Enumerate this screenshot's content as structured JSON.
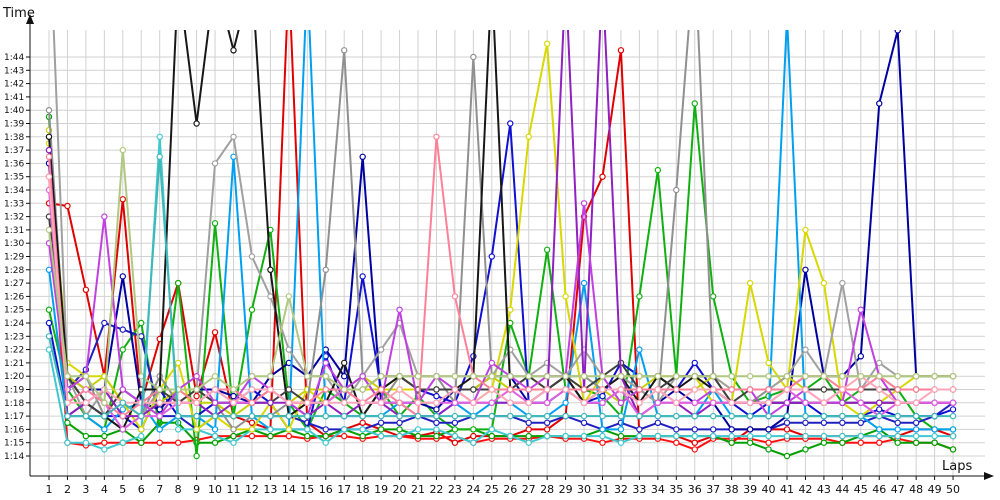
{
  "chart_data": {
    "type": "line",
    "ylabel": "Time",
    "xlabel": "Laps",
    "x": [
      1,
      2,
      3,
      4,
      5,
      6,
      7,
      8,
      9,
      10,
      11,
      12,
      13,
      14,
      15,
      16,
      17,
      18,
      19,
      20,
      21,
      22,
      23,
      24,
      25,
      26,
      27,
      28,
      29,
      30,
      31,
      32,
      33,
      34,
      35,
      36,
      37,
      38,
      39,
      40,
      41,
      42,
      43,
      44,
      45,
      46,
      47,
      48,
      49,
      50
    ],
    "y_ticks": [
      "1:14",
      "1:15",
      "1:16",
      "1:17",
      "1:18",
      "1:19",
      "1:20",
      "1:21",
      "1:22",
      "1:23",
      "1:24",
      "1:25",
      "1:26",
      "1:27",
      "1:28",
      "1:29",
      "1:30",
      "1:31",
      "1:32",
      "1:33",
      "1:34",
      "1:35",
      "1:36",
      "1:37",
      "1:38",
      "1:39",
      "1:40",
      "1:41",
      "1:42",
      "1:43",
      "1:44"
    ],
    "ylim_seconds": [
      73,
      106
    ],
    "grid": true,
    "series": [
      {
        "color": "#e00000",
        "values": [
          93,
          92.8,
          86.5,
          80,
          93.3,
          78,
          82.8,
          87,
          78.5,
          83.3,
          77,
          76.5,
          76,
          110,
          76.5,
          75.5,
          76,
          76.5,
          76,
          75.5,
          75.5,
          75.8,
          75,
          75.5,
          75.5,
          75.5,
          76,
          76,
          77,
          92,
          95,
          104.5,
          75.5,
          75.5,
          75.5,
          75,
          75.5,
          75,
          76,
          76,
          76,
          75.5,
          75.5,
          75.5,
          75.5,
          75.5,
          75.5,
          76,
          76,
          75.5
        ]
      },
      {
        "color": "#ff1010",
        "values": [
          95,
          75,
          74.8,
          75,
          75,
          75,
          75,
          75,
          75.2,
          75.5,
          75.5,
          75.5,
          75.5,
          75.5,
          75.3,
          75.5,
          75.5,
          75.3,
          75.5,
          75.5,
          75.3,
          75.3,
          75.5,
          75,
          75.3,
          75.3,
          75.3,
          75.5,
          75.3,
          75.3,
          75,
          75.3,
          75.3,
          75.3,
          75,
          74.5,
          75.3,
          75.3,
          75.3,
          75,
          75.3,
          75.3,
          75.3,
          75,
          75,
          75,
          75.3,
          75,
          75,
          74.5
        ]
      },
      {
        "color": "#00a000",
        "values": [
          99.5,
          76.5,
          75.5,
          75.5,
          76,
          75,
          76.5,
          76.5,
          75,
          75,
          75.5,
          76,
          75.5,
          76,
          75.5,
          75.5,
          76,
          75.5,
          76,
          76,
          75.5,
          75.5,
          76,
          76,
          75.5,
          75.5,
          75.5,
          75.5,
          75.5,
          75.5,
          76,
          75.5,
          75.5,
          75.5,
          75.5,
          75.5,
          75.5,
          75,
          75,
          74.5,
          74,
          74.5,
          75,
          75,
          75.5,
          76,
          75,
          75,
          75,
          74.5
        ]
      },
      {
        "color": "#10b010",
        "values": [
          85,
          79,
          77,
          76,
          82,
          84,
          76,
          87,
          74,
          91.5,
          77,
          85,
          91,
          78,
          76,
          79,
          78,
          77,
          79,
          77,
          78.5,
          77,
          76,
          76,
          76,
          84,
          80,
          89.5,
          79,
          79,
          78.5,
          77,
          86,
          95.5,
          80,
          100.5,
          86,
          80,
          78,
          78.5,
          79,
          79,
          80,
          78,
          79,
          79,
          79,
          77,
          76,
          76
        ]
      },
      {
        "color": "#2020c0",
        "values": [
          97,
          79,
          80.5,
          84,
          83.5,
          83,
          77,
          77,
          76,
          77,
          77,
          77,
          77,
          77,
          76.5,
          76,
          76,
          76,
          76.5,
          76.5,
          77,
          76.5,
          76.5,
          77,
          77,
          77,
          76.5,
          76.5,
          77,
          76.5,
          76,
          76.5,
          76,
          76.5,
          76,
          76,
          76,
          76,
          76,
          76,
          76.5,
          76.5,
          76.5,
          76.5,
          76.5,
          77,
          76.5,
          76.5,
          77,
          78
        ]
      },
      {
        "color": "#0000a0",
        "values": [
          96,
          80,
          79,
          79,
          87.5,
          78,
          77.5,
          79,
          79,
          79,
          78.5,
          78,
          80,
          81,
          80,
          82,
          80,
          96.5,
          78,
          78,
          78,
          77.5,
          79,
          79,
          80,
          80,
          78,
          78,
          79,
          78,
          78,
          79,
          79,
          78,
          79,
          78,
          78,
          76,
          76,
          76,
          77,
          88,
          80,
          80,
          81.5,
          100.5,
          106,
          80,
          80,
          80
        ]
      },
      {
        "color": "#1010d0",
        "values": [
          84,
          77,
          78,
          77,
          77,
          76,
          79,
          77,
          77,
          78,
          78,
          79,
          78,
          76,
          76,
          81.5,
          78,
          87.5,
          79,
          79,
          79,
          78.5,
          78,
          81.5,
          89,
          99,
          78,
          79,
          80,
          78,
          78.5,
          81,
          80,
          80,
          79,
          81,
          79,
          78,
          77,
          78,
          78,
          78,
          77,
          77,
          77,
          77.5,
          77,
          77,
          77,
          77.5
        ]
      },
      {
        "color": "#00a0f0",
        "values": [
          88,
          77,
          77,
          76,
          77.5,
          78,
          76,
          77,
          77,
          76,
          96.5,
          77,
          76,
          76,
          110,
          77,
          77,
          77,
          77,
          78,
          77,
          77,
          78,
          77,
          78,
          78,
          77,
          77,
          78,
          87,
          76,
          76,
          82,
          77,
          77,
          77,
          79,
          77,
          77,
          77,
          107,
          77,
          77,
          77,
          77,
          76,
          76,
          76,
          76,
          76
        ]
      },
      {
        "color": "#40c8d0",
        "values": [
          82,
          75,
          75,
          74.5,
          75,
          75.5,
          98,
          76,
          76,
          75.5,
          75,
          76,
          76,
          76,
          76,
          75,
          76,
          76,
          75.5,
          75.5,
          76,
          76,
          75.5,
          75,
          76,
          75.5,
          75,
          75.5,
          75.5,
          75.5,
          75.5,
          75,
          75.5,
          75.5,
          75.5,
          75.5,
          75.5,
          75.5,
          75.5,
          75.5,
          75.5,
          75.5,
          75.5,
          75.5,
          75.5,
          75.5,
          75.5,
          75.5,
          75.5,
          75.5
        ]
      },
      {
        "color": "#d8d800",
        "values": [
          97.5,
          81,
          80,
          80,
          78,
          76,
          79,
          81,
          76,
          77,
          76,
          76,
          78,
          76,
          79,
          78,
          79,
          79,
          79,
          79,
          79,
          79,
          79,
          78,
          79,
          85,
          98,
          105,
          86,
          78,
          80,
          80,
          80,
          80,
          80,
          80,
          78,
          78,
          87,
          81,
          79,
          91,
          87,
          78,
          77,
          78,
          79,
          80,
          80,
          80
        ]
      },
      {
        "color": "#c8d000",
        "values": [
          98.5,
          80,
          79,
          80,
          78,
          77,
          78,
          79,
          78,
          78,
          77,
          78,
          79,
          78,
          79,
          79,
          79,
          80,
          79,
          80,
          79,
          79,
          79,
          79,
          80,
          79,
          80,
          79,
          80,
          79,
          79,
          78,
          79,
          80,
          79,
          79,
          80,
          79,
          79,
          79,
          80,
          79,
          79,
          79,
          79,
          79,
          79,
          79,
          79,
          79
        ]
      },
      {
        "color": "#909090",
        "values": [
          100,
          79,
          80,
          77,
          76,
          77,
          80,
          78,
          79,
          78,
          76,
          77,
          77,
          78,
          78,
          88,
          104.5,
          80,
          78,
          80,
          80,
          80,
          78,
          104,
          80,
          80,
          80,
          80,
          80,
          80,
          79,
          80,
          77,
          78,
          94,
          112,
          80,
          78,
          78,
          79,
          79,
          80,
          80,
          80,
          80,
          80,
          79,
          79,
          79,
          79
        ]
      },
      {
        "color": "#a0a0a0",
        "values": [
          115,
          80,
          77,
          79,
          78,
          77,
          79,
          79,
          79,
          96,
          98,
          89,
          86,
          82,
          80,
          80,
          78,
          80,
          82,
          84,
          80,
          80,
          80,
          80,
          80,
          82,
          80,
          81,
          80,
          82,
          80,
          80,
          79,
          78,
          80,
          80,
          80,
          79,
          79,
          79,
          80,
          82,
          80,
          87,
          79,
          81,
          80,
          80,
          80,
          80
        ]
      },
      {
        "color": "#181818",
        "values": [
          98,
          80,
          78,
          77,
          76,
          79,
          79,
          110,
          99,
          110,
          104.5,
          110,
          88,
          77,
          78,
          78,
          81,
          77,
          79,
          80,
          79,
          79,
          79,
          80,
          110,
          79,
          79,
          79,
          80,
          78,
          79,
          80,
          78,
          80,
          79,
          80,
          79,
          78,
          78,
          78,
          78,
          78,
          78,
          78,
          78,
          78,
          78,
          78,
          78,
          78
        ]
      },
      {
        "color": "#404040",
        "values": [
          92,
          80,
          78,
          77,
          79,
          78,
          79,
          78,
          79,
          78,
          78,
          78,
          78,
          79,
          78,
          78,
          79,
          79,
          80,
          80,
          79,
          79,
          79,
          79,
          79,
          79,
          80,
          79,
          80,
          79,
          80,
          81,
          79,
          79,
          80,
          80,
          80,
          78,
          79,
          79,
          79,
          79,
          79,
          79,
          79,
          79,
          79,
          79,
          79,
          79
        ]
      },
      {
        "color": "#9020c0",
        "values": [
          97,
          77,
          78,
          79,
          77,
          77,
          78,
          78,
          78,
          77,
          78,
          78,
          78,
          78,
          77,
          78,
          77,
          78,
          78,
          77,
          77,
          77,
          78,
          78,
          78,
          78,
          78,
          78,
          110,
          79,
          110,
          80,
          77,
          78,
          78,
          77,
          78,
          78,
          78,
          78,
          78,
          78,
          78,
          78,
          78,
          78,
          78,
          78,
          78,
          78
        ]
      },
      {
        "color": "#c040e0",
        "values": [
          90,
          79,
          80,
          92,
          79,
          78,
          77,
          79,
          80,
          78,
          78,
          80,
          79,
          78,
          77,
          81,
          79,
          80,
          78,
          85,
          78,
          80,
          79,
          78,
          81,
          80,
          79,
          80,
          80,
          93,
          80,
          78,
          79,
          79,
          78,
          78,
          79,
          79,
          79,
          77,
          78,
          79,
          78,
          78,
          85,
          80,
          78,
          78,
          78,
          78
        ]
      },
      {
        "color": "#e060e0",
        "values": [
          94,
          78,
          79,
          78,
          76,
          77,
          77,
          78,
          78,
          79,
          78,
          78,
          79,
          78,
          78,
          78,
          79,
          78,
          78,
          78,
          78,
          78,
          78,
          78,
          78,
          79,
          78,
          78,
          79,
          78,
          78,
          79,
          77,
          78,
          78,
          78,
          78,
          78,
          78,
          78,
          79,
          78,
          78,
          79,
          78,
          77,
          78,
          78,
          78,
          78
        ]
      },
      {
        "color": "#ff8098",
        "values": [
          96.5,
          78,
          79,
          78,
          77,
          78,
          79,
          79,
          78,
          79,
          79,
          78,
          79,
          78,
          78,
          79,
          79,
          78,
          79,
          78,
          77,
          98,
          86,
          80,
          79,
          79,
          79,
          79,
          79,
          79,
          79,
          79,
          79,
          79,
          79,
          79,
          79,
          79,
          79,
          79,
          79,
          80,
          80,
          79,
          79,
          80,
          79,
          79,
          79,
          79
        ]
      },
      {
        "color": "#ffa8b8",
        "values": [
          95,
          78,
          78,
          79,
          78,
          78,
          78,
          78,
          78,
          79,
          78,
          79,
          79,
          78,
          78,
          78,
          78,
          78,
          78,
          79,
          78,
          78,
          79,
          78,
          79,
          78,
          78,
          79,
          79,
          78,
          79,
          79,
          78,
          79,
          78,
          79,
          79,
          78,
          78,
          78,
          79,
          79,
          78,
          79,
          80,
          79,
          78,
          78,
          79,
          79
        ]
      },
      {
        "color": "#b0c880",
        "values": [
          91,
          80,
          80,
          78,
          97,
          80,
          79,
          79,
          79,
          80,
          79,
          80,
          80,
          86,
          80,
          80,
          79,
          79,
          80,
          80,
          80,
          80,
          80,
          80,
          80,
          80,
          80,
          80,
          80,
          80,
          80,
          80,
          80,
          80,
          80,
          80,
          80,
          80,
          80,
          80,
          80,
          80,
          80,
          80,
          80,
          80,
          80,
          80,
          80,
          80
        ]
      },
      {
        "color": "#40b8b8",
        "values": [
          83,
          77,
          77,
          77,
          78,
          77,
          96.5,
          77,
          77,
          77,
          77,
          77,
          77,
          77,
          77,
          77,
          77,
          77,
          77,
          77,
          77,
          77,
          77,
          77,
          77,
          77,
          77,
          77,
          77,
          77,
          77,
          77,
          77,
          77,
          77,
          77,
          77,
          77,
          77,
          77,
          77,
          77,
          77,
          77,
          77,
          77,
          77,
          77,
          77,
          77
        ]
      }
    ]
  }
}
